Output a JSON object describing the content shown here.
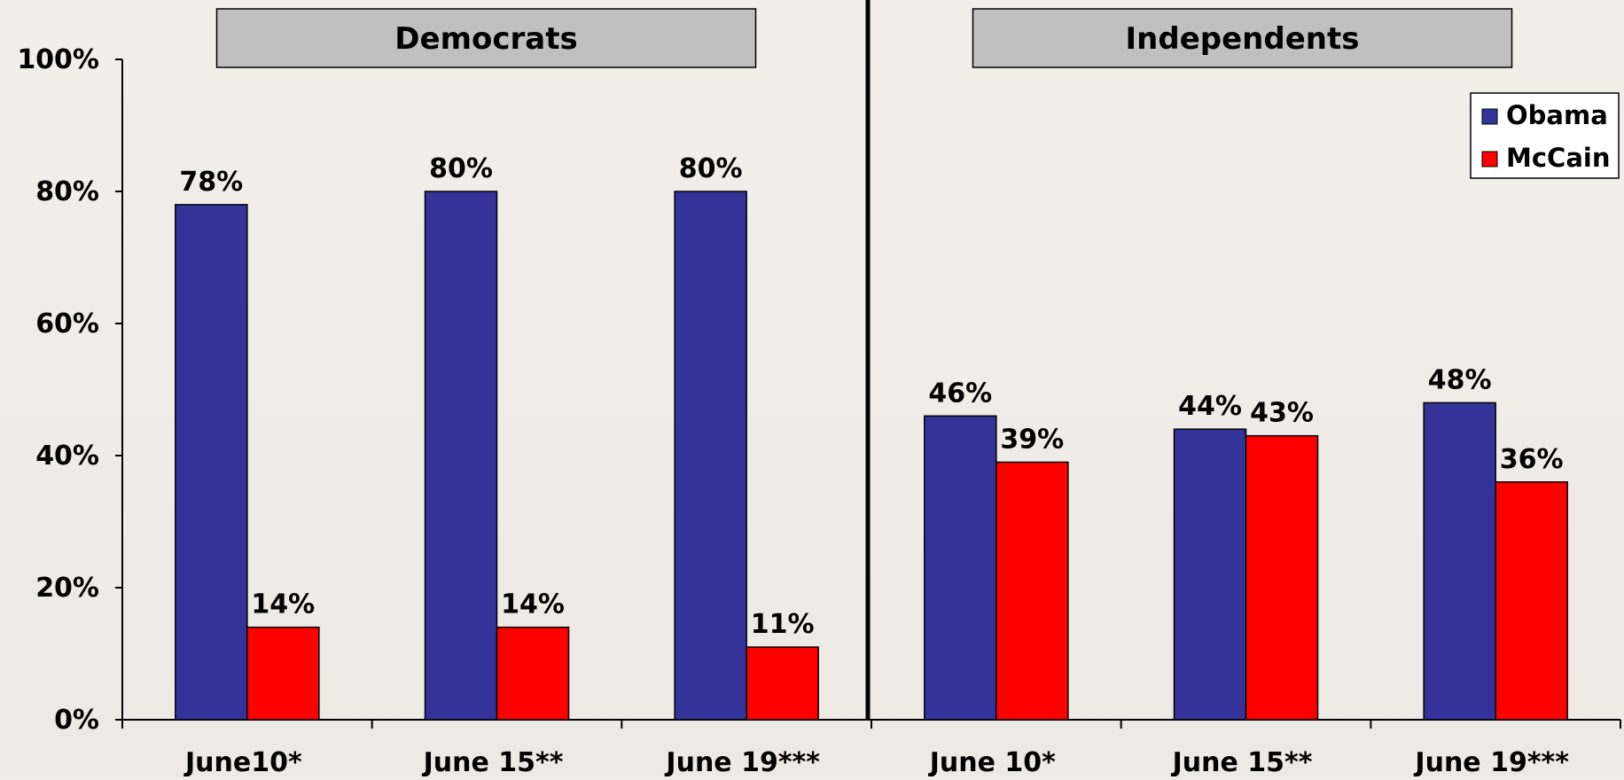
{
  "chart_data": {
    "type": "bar",
    "categories": [
      "June10*",
      "June 15**",
      "June 19***",
      "June 10*",
      "June 15**",
      "June 19***"
    ],
    "groups": [
      {
        "title": "Democrats",
        "category_indices": [
          0,
          1,
          2
        ]
      },
      {
        "title": "Independents",
        "category_indices": [
          3,
          4,
          5
        ]
      }
    ],
    "series": [
      {
        "name": "Obama",
        "color": "#333399",
        "values": [
          78,
          80,
          80,
          46,
          44,
          48
        ],
        "labels": [
          "78%",
          "80%",
          "80%",
          "46%",
          "44%",
          "48%"
        ]
      },
      {
        "name": "McCain",
        "color": "#ff0000",
        "values": [
          14,
          14,
          11,
          39,
          43,
          36
        ],
        "labels": [
          "14%",
          "14%",
          "11%",
          "39%",
          "43%",
          "36%"
        ]
      }
    ],
    "ylim": [
      0,
      100
    ],
    "yticks": [
      0,
      20,
      40,
      60,
      80,
      100
    ],
    "ytick_labels": [
      "0%",
      "20%",
      "40%",
      "60%",
      "80%",
      "100%"
    ],
    "legend_position": "top-right",
    "grid": false
  }
}
